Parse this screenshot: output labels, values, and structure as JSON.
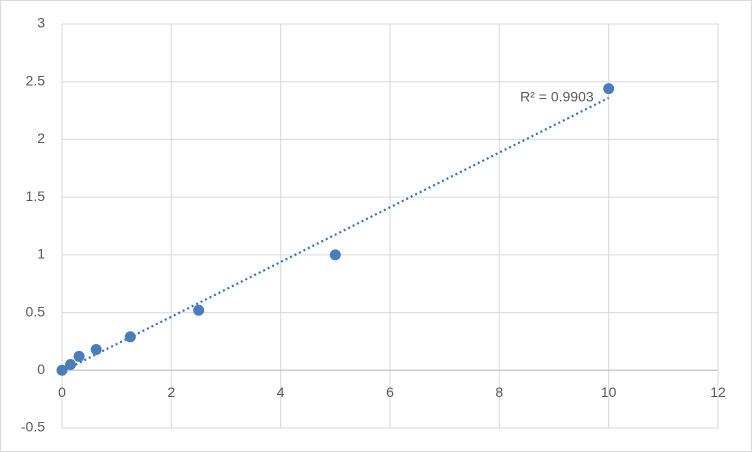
{
  "chart_data": {
    "type": "scatter",
    "x": [
      0,
      0.156,
      0.3125,
      0.625,
      1.25,
      2.5,
      5,
      10
    ],
    "values": [
      0,
      0.05,
      0.12,
      0.18,
      0.29,
      0.52,
      1.0,
      2.44
    ],
    "color": "#4a7ebb",
    "xlim": [
      0,
      12
    ],
    "xticks": [
      0,
      2,
      4,
      6,
      8,
      10,
      12
    ],
    "ylim": [
      -0.5,
      3
    ],
    "yticks": [
      -0.5,
      0,
      0.5,
      1,
      1.5,
      2,
      2.5,
      3
    ],
    "grid": true,
    "trendline": {
      "x": [
        0,
        10
      ],
      "values": [
        -0.01,
        2.36
      ],
      "label": "R² = 0.9903",
      "color": "#2e75b6"
    }
  }
}
